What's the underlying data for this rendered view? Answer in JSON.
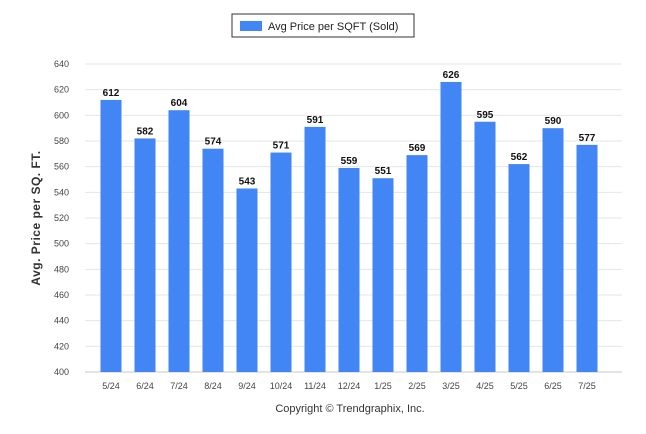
{
  "chart_data": {
    "type": "bar",
    "legend": {
      "label": "Avg Price per SQFT (Sold)",
      "position": "top-center"
    },
    "ylabel": "Avg. Price per SQ. FT.",
    "xlabel": "",
    "ylim": [
      400,
      640
    ],
    "yticks": [
      "400",
      "420",
      "440",
      "460",
      "480",
      "500",
      "520",
      "540",
      "560",
      "580",
      "600",
      "620",
      "640"
    ],
    "grid": true,
    "color": "#4285f4",
    "categories": [
      "5/24",
      "6/24",
      "7/24",
      "8/24",
      "9/24",
      "10/24",
      "11/24",
      "12/24",
      "1/25",
      "2/25",
      "3/25",
      "4/25",
      "5/25",
      "6/25",
      "7/25"
    ],
    "values": [
      612,
      582,
      604,
      574,
      543,
      571,
      591,
      559,
      551,
      569,
      626,
      595,
      562,
      590,
      577
    ]
  },
  "footer": {
    "credit": "Copyright © Trendgraphix, Inc."
  }
}
